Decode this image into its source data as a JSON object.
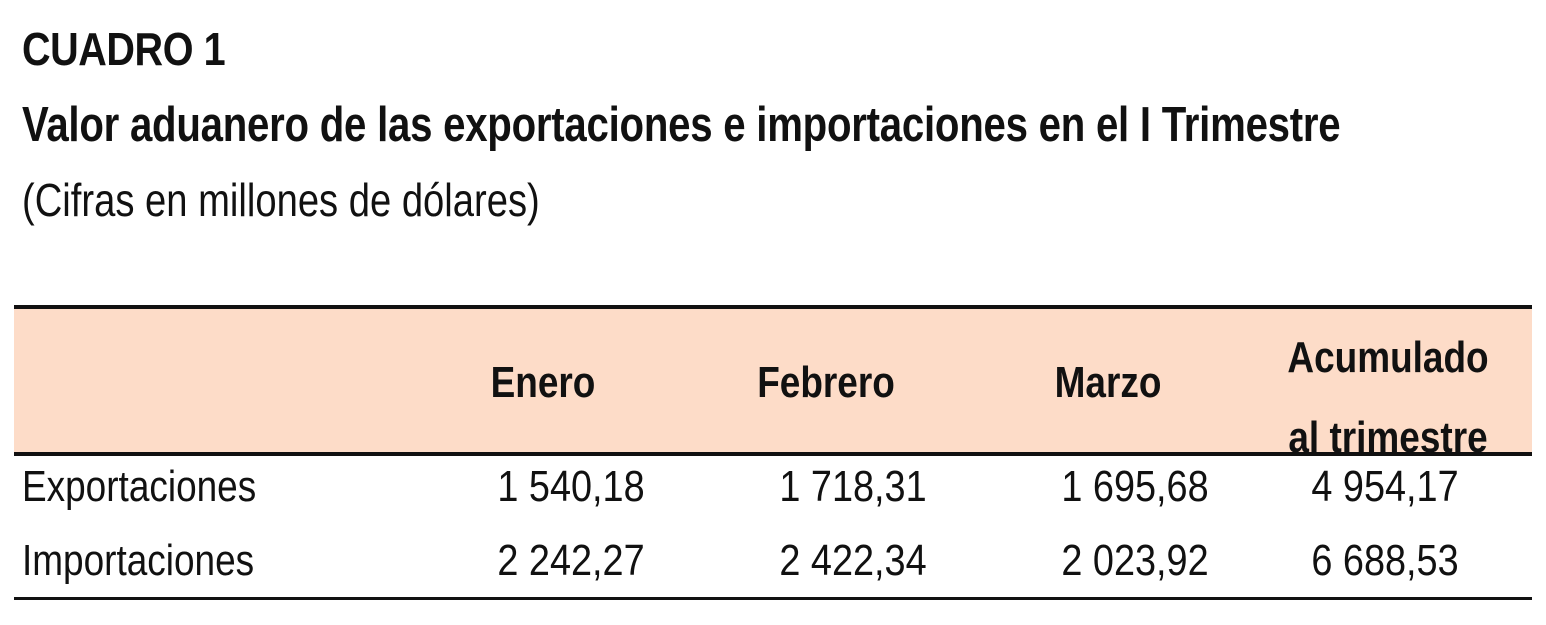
{
  "table_label": "CUADRO 1",
  "title": "Valor aduanero de las exportaciones e importaciones en el I Trimestre",
  "subtitle": "(Cifras en millones de dólares)",
  "columns": {
    "enero": "Enero",
    "febrero": "Febrero",
    "marzo": "Marzo",
    "acumulado_line1": "Acumulado",
    "acumulado_line2": "al trimestre"
  },
  "rows": [
    {
      "label": "Exportaciones",
      "values": [
        "1 540,18",
        "1 718,31",
        "1 695,68",
        "4 954,17"
      ]
    },
    {
      "label": "Importaciones",
      "values": [
        "2 242,27",
        "2 422,34",
        "2 023,92",
        "6 688,53"
      ]
    }
  ],
  "colors": {
    "header_background": "#fddcc8",
    "rules": "#111111"
  }
}
